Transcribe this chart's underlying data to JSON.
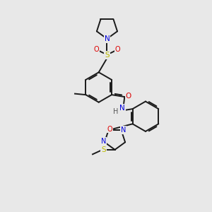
{
  "background_color": "#e8e8e8",
  "bond_color": "#1a1a1a",
  "atom_colors": {
    "N": "#0000dd",
    "O": "#dd0000",
    "S_sulfonyl": "#bbbb00",
    "S_thio": "#bbbb00",
    "H": "#555555"
  },
  "fig_w": 3.0,
  "fig_h": 3.0,
  "dpi": 100
}
